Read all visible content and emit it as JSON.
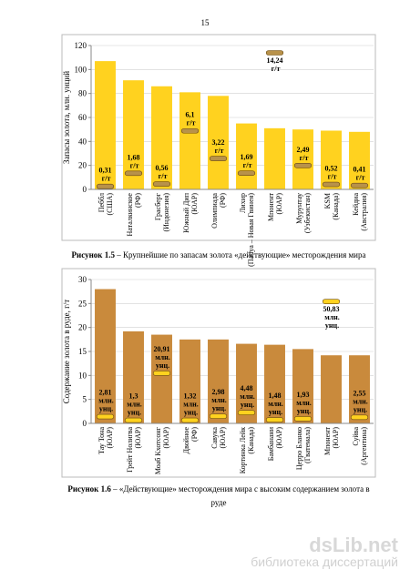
{
  "page_number": "15",
  "chart_data": [
    {
      "type": "bar",
      "ylabel": "Запасы золота, млн. унций",
      "categories": [
        "Пеббл (США)",
        "Наталкинское (РФ)",
        "Грасберг (Индонезия)",
        "Южный Дип (ЮАР)",
        "Олимпиада (РФ)",
        "Лихир (Папуа – Новая Гвинея)",
        "Мпонент (ЮАР)",
        "Мурунтау (Узбекистан)",
        "KSM (Канада)",
        "Кейдиа (Австралия)"
      ],
      "ylim": [
        0,
        120
      ],
      "yticks": [
        0,
        20,
        40,
        60,
        80,
        100,
        120
      ],
      "y2lim": [
        0,
        15
      ],
      "grid": true,
      "series": [
        {
          "color": "#ffd21f",
          "values": [
            107,
            91,
            86,
            81,
            78,
            55,
            51,
            50,
            49,
            48
          ]
        },
        {
          "axis": "y2",
          "color": "#b8924a",
          "values": [
            0.31,
            1.68,
            0.56,
            6.1,
            3.22,
            1.69,
            14.24,
            2.49,
            0.52,
            0.41
          ],
          "value_labels": [
            "0,31 г/т",
            "1,68 г/т",
            "0,56 г/т",
            "6,1 г/т",
            "3,22 г/т",
            "1,69 г/т",
            "14,24 г/т",
            "2,49 г/т",
            "0,52 г/т",
            "0,41 г/т"
          ]
        }
      ]
    },
    {
      "type": "bar",
      "ylabel": "Содержание золота в руде, г/т",
      "categories": [
        "Тау Тона (ЮАР)",
        "Грейт Нолигва (ЮАР)",
        "Моаб Кхотсонг (ЮАР)",
        "Двойное (РФ)",
        "Савука (ЮАР)",
        "Кортинка Лейк (Канада)",
        "Бамбанани (ЮАР)",
        "Церро Бланко (Гватемала)",
        "Мпонент (ЮАР)",
        "Суйва (Аргентина)"
      ],
      "ylim": [
        0,
        30
      ],
      "yticks": [
        0,
        5,
        10,
        15,
        20,
        25,
        30
      ],
      "y2lim": [
        0,
        60
      ],
      "grid": true,
      "series": [
        {
          "color": "#c98a3c",
          "values": [
            28,
            19.2,
            18.5,
            17.5,
            17.5,
            16.6,
            16.4,
            15.5,
            14.2,
            14.2
          ]
        },
        {
          "axis": "y2",
          "color": "#ffd21f",
          "values": [
            2.81,
            1.3,
            20.91,
            1.32,
            2.98,
            4.48,
            1.48,
            1.93,
            50.83,
            2.55
          ],
          "value_labels": [
            "2,81 млн. унц.",
            "1,3 млн. унц.",
            "20,91 млн. унц.",
            "1,32 млн. унц.",
            "2,98 млн. унц.",
            "4,48 млн. унц.",
            "1,48 млн. унц.",
            "1,93 млн. унц.",
            "50,83 млн. унц.",
            "2,55 млн. унц."
          ]
        }
      ]
    }
  ],
  "captions": [
    {
      "label": "Рисунок 1.5",
      "text": "– Крупнейшие по запасам золота «действующие» месторождения мира"
    },
    {
      "label": "Рисунок 1.6",
      "text": "– «Действующие» месторождения мира с высоким содержанием золота в",
      "text2": "руде"
    }
  ],
  "watermark": {
    "brand": "dsLib.net",
    "tagline": "библиотека диссертаций"
  }
}
